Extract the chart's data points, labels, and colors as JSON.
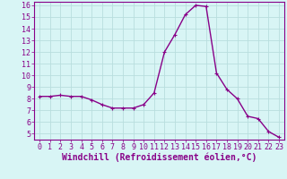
{
  "x": [
    0,
    1,
    2,
    3,
    4,
    5,
    6,
    7,
    8,
    9,
    10,
    11,
    12,
    13,
    14,
    15,
    16,
    17,
    18,
    19,
    20,
    21,
    22,
    23
  ],
  "y": [
    8.2,
    8.2,
    8.3,
    8.2,
    8.2,
    7.9,
    7.5,
    7.2,
    7.2,
    7.2,
    7.5,
    8.5,
    12.0,
    13.5,
    15.2,
    16.0,
    15.9,
    10.2,
    8.8,
    8.0,
    6.5,
    6.3,
    5.2,
    4.7
  ],
  "line_color": "#880088",
  "marker": "+",
  "xlabel": "Windchill (Refroidissement éolien,°C)",
  "ylim": [
    5,
    16
  ],
  "xlim": [
    -0.5,
    23.5
  ],
  "yticks": [
    5,
    6,
    7,
    8,
    9,
    10,
    11,
    12,
    13,
    14,
    15,
    16
  ],
  "xticks": [
    0,
    1,
    2,
    3,
    4,
    5,
    6,
    7,
    8,
    9,
    10,
    11,
    12,
    13,
    14,
    15,
    16,
    17,
    18,
    19,
    20,
    21,
    22,
    23
  ],
  "bg_color": "#d8f5f5",
  "grid_color": "#b8dede",
  "spine_color": "#880088",
  "xlabel_color": "#880088",
  "tick_color": "#880088",
  "label_fontsize": 7,
  "tick_fontsize": 6,
  "marker_size": 3,
  "linewidth": 1.0
}
